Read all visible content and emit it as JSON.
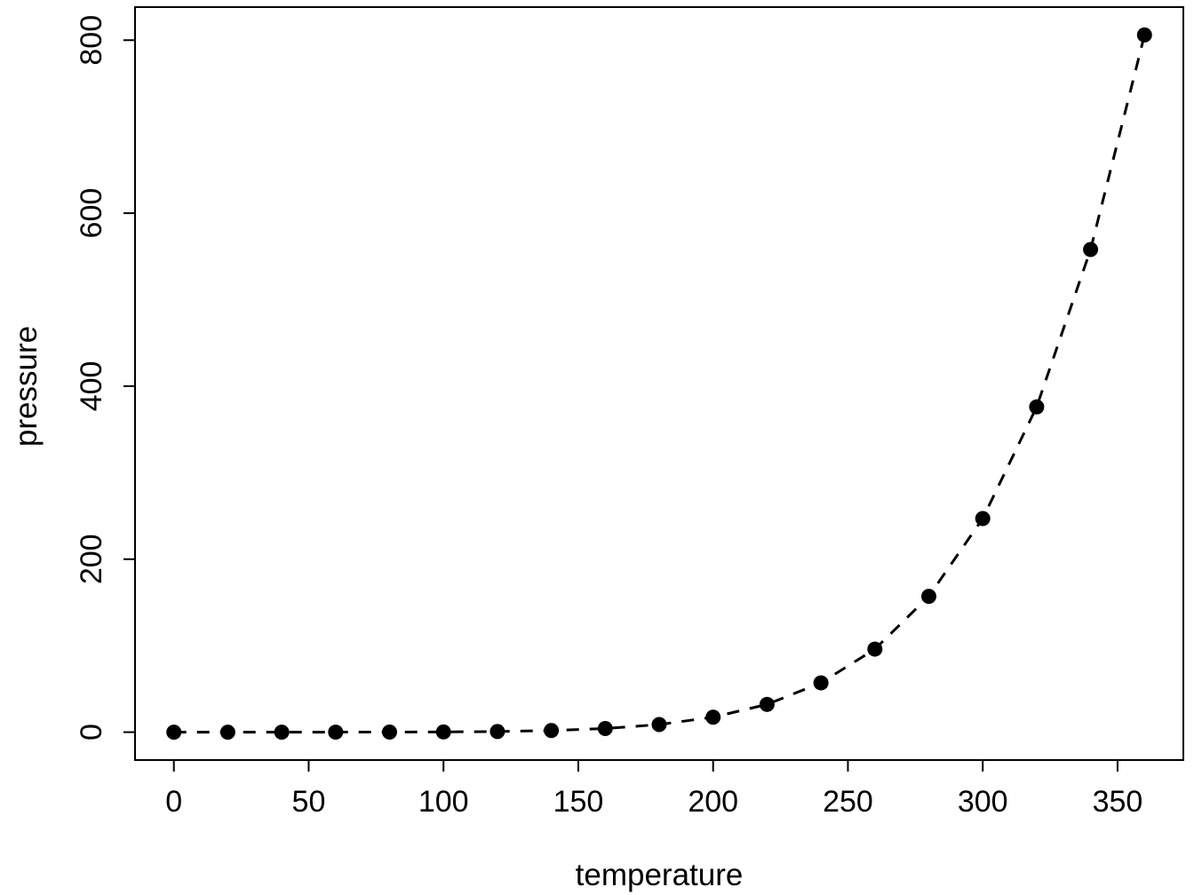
{
  "chart_data": {
    "type": "line",
    "title": "",
    "xlabel": "temperature",
    "ylabel": "pressure",
    "x": [
      0,
      20,
      40,
      60,
      80,
      100,
      120,
      140,
      160,
      180,
      200,
      220,
      240,
      260,
      280,
      300,
      320,
      340,
      360
    ],
    "y": [
      0.0002,
      0.0012,
      0.006,
      0.03,
      0.09,
      0.27,
      0.75,
      1.85,
      4.2,
      8.8,
      17.3,
      32.1,
      57.0,
      96.0,
      157.0,
      247.0,
      376.0,
      558.0,
      806.0
    ],
    "x_ticks": [
      0,
      50,
      100,
      150,
      200,
      250,
      300,
      350
    ],
    "y_ticks": [
      0,
      200,
      400,
      600,
      800
    ],
    "xlim": [
      0,
      360
    ],
    "ylim": [
      0,
      806
    ],
    "line_style": "dashed",
    "marker": "filled-circle",
    "legend": "none",
    "grid": false,
    "color": "#000000",
    "background": "#ffffff"
  }
}
